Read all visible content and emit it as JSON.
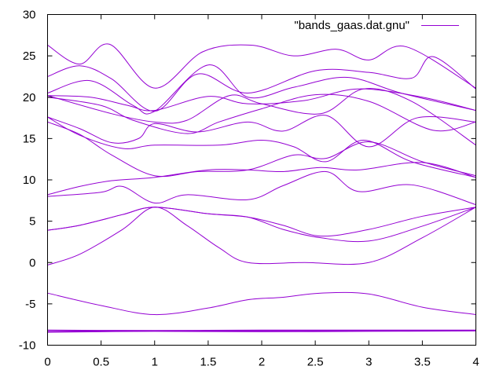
{
  "chart_data": {
    "type": "line",
    "title": "",
    "xlabel": "",
    "ylabel": "",
    "xlim": [
      0,
      4
    ],
    "ylim": [
      -10,
      30
    ],
    "xticks": [
      0,
      0.5,
      1,
      1.5,
      2,
      2.5,
      3,
      3.5,
      4
    ],
    "yticks": [
      -10,
      -5,
      0,
      5,
      10,
      15,
      20,
      25,
      30
    ],
    "xtick_labels": [
      "0",
      "0.5",
      "1",
      "1.5",
      "2",
      "2.5",
      "3",
      "3.5",
      "4"
    ],
    "ytick_labels": [
      "-10",
      "-5",
      "0",
      "5",
      "10",
      "15",
      "20",
      "25",
      "30"
    ],
    "grid": false,
    "legend_position": "top-right",
    "color": "#9400d3",
    "series": [
      {
        "name": "\"bands_gaas.dat.gnu\"",
        "bands": [
          [
            [
              0,
              -8.2
            ],
            [
              1,
              -8.25
            ],
            [
              2,
              -8.2
            ],
            [
              3,
              -8.2
            ],
            [
              4,
              -8.2
            ]
          ],
          [
            [
              0,
              -8.4
            ],
            [
              1,
              -8.3
            ],
            [
              2,
              -8.35
            ],
            [
              3,
              -8.3
            ],
            [
              4,
              -8.25
            ]
          ],
          [
            [
              0,
              -3.7
            ],
            [
              0.5,
              -5.2
            ],
            [
              1,
              -6.3
            ],
            [
              1.5,
              -5.5
            ],
            [
              1.87,
              -4.5
            ],
            [
              2.2,
              -4.2
            ],
            [
              2.55,
              -3.7
            ],
            [
              3,
              -3.8
            ],
            [
              3.5,
              -5.4
            ],
            [
              4,
              -6.3
            ]
          ],
          [
            [
              0,
              -0.3
            ],
            [
              0.3,
              1
            ],
            [
              0.7,
              4
            ],
            [
              1,
              6.7
            ],
            [
              1.3,
              4.5
            ],
            [
              1.6,
              1.8
            ],
            [
              1.87,
              0
            ],
            [
              2.4,
              0
            ],
            [
              3,
              0
            ],
            [
              3.5,
              3
            ],
            [
              4,
              6.7
            ]
          ],
          [
            [
              0,
              3.9
            ],
            [
              0.3,
              4.5
            ],
            [
              0.7,
              5.8
            ],
            [
              1,
              6.7
            ],
            [
              1.5,
              5.9
            ],
            [
              1.87,
              5.5
            ],
            [
              2.2,
              4
            ],
            [
              2.55,
              3
            ],
            [
              3,
              2.6
            ],
            [
              3.5,
              4.4
            ],
            [
              4,
              6.7
            ]
          ],
          [
            [
              0,
              3.9
            ],
            [
              0.3,
              4.5
            ],
            [
              0.7,
              5.8
            ],
            [
              1,
              6.7
            ],
            [
              1.5,
              5.9
            ],
            [
              1.87,
              5.5
            ],
            [
              2.2,
              4.5
            ],
            [
              2.55,
              3.2
            ],
            [
              3,
              4
            ],
            [
              3.5,
              5.6
            ],
            [
              4,
              6.7
            ]
          ],
          [
            [
              0,
              8
            ],
            [
              0.5,
              8.5
            ],
            [
              0.7,
              9.2
            ],
            [
              1,
              7.2
            ],
            [
              1.3,
              8.2
            ],
            [
              1.87,
              7.6
            ],
            [
              2.2,
              9.3
            ],
            [
              2.6,
              11
            ],
            [
              2.9,
              8.6
            ],
            [
              3.4,
              9.4
            ],
            [
              4,
              7
            ]
          ],
          [
            [
              0,
              8.2
            ],
            [
              0.3,
              9.2
            ],
            [
              0.6,
              9.9
            ],
            [
              1,
              10.3
            ],
            [
              1.5,
              11.2
            ],
            [
              1.87,
              11.2
            ],
            [
              2.2,
              11
            ],
            [
              2.55,
              11.5
            ],
            [
              2.9,
              11.2
            ],
            [
              3.5,
              12.1
            ],
            [
              4,
              10.3
            ]
          ],
          [
            [
              0,
              17
            ],
            [
              0.3,
              15.5
            ],
            [
              0.6,
              13
            ],
            [
              1,
              10.5
            ],
            [
              1.4,
              11
            ],
            [
              1.87,
              11.2
            ],
            [
              2.3,
              13
            ],
            [
              2.6,
              12.6
            ],
            [
              3,
              14.6
            ],
            [
              3.5,
              12.2
            ],
            [
              4,
              10.5
            ]
          ],
          [
            [
              0,
              17.6
            ],
            [
              0.3,
              15.4
            ],
            [
              0.7,
              13.8
            ],
            [
              1,
              14.2
            ],
            [
              1.6,
              14.2
            ],
            [
              2,
              14.8
            ],
            [
              2.3,
              14
            ],
            [
              2.6,
              12.2
            ],
            [
              2.95,
              14.8
            ],
            [
              3.4,
              12.2
            ],
            [
              4,
              10.3
            ]
          ],
          [
            [
              0,
              17.6
            ],
            [
              0.3,
              16.2
            ],
            [
              0.6,
              14.5
            ],
            [
              0.85,
              15
            ],
            [
              1,
              16.8
            ],
            [
              1.4,
              15.8
            ],
            [
              1.87,
              17
            ],
            [
              2.2,
              15.9
            ],
            [
              2.6,
              17.8
            ],
            [
              3,
              14
            ],
            [
              3.45,
              17.5
            ],
            [
              4,
              17
            ]
          ],
          [
            [
              0,
              20
            ],
            [
              0.5,
              19
            ],
            [
              0.8,
              17.2
            ],
            [
              1.3,
              15.6
            ],
            [
              1.6,
              17
            ],
            [
              2,
              18.6
            ],
            [
              2.5,
              20.3
            ],
            [
              3,
              19.5
            ],
            [
              3.6,
              16
            ],
            [
              4,
              17
            ]
          ],
          [
            [
              0,
              20.2
            ],
            [
              0.6,
              18
            ],
            [
              1,
              17
            ],
            [
              1.3,
              17.2
            ],
            [
              1.7,
              20.2
            ],
            [
              2,
              19.2
            ],
            [
              2.55,
              18
            ],
            [
              2.95,
              21
            ],
            [
              3.4,
              19.5
            ],
            [
              4,
              14.2
            ]
          ],
          [
            [
              0,
              20.2
            ],
            [
              0.4,
              20
            ],
            [
              0.75,
              19
            ],
            [
              1,
              18.4
            ],
            [
              1.5,
              20.1
            ],
            [
              1.87,
              19.2
            ],
            [
              2.4,
              19.6
            ],
            [
              2.9,
              21
            ],
            [
              3.5,
              20
            ],
            [
              4,
              18.4
            ]
          ],
          [
            [
              0,
              20.5
            ],
            [
              0.4,
              22
            ],
            [
              0.8,
              19
            ],
            [
              1,
              18.3
            ],
            [
              1.5,
              23.9
            ],
            [
              1.87,
              20
            ],
            [
              2.3,
              21.2
            ],
            [
              2.8,
              22.4
            ],
            [
              3.3,
              20.5
            ],
            [
              4,
              18.4
            ]
          ],
          [
            [
              0,
              22.5
            ],
            [
              0.3,
              23.8
            ],
            [
              0.6,
              22.2
            ],
            [
              1,
              18.3
            ],
            [
              1.4,
              22.8
            ],
            [
              1.87,
              20.5
            ],
            [
              2.5,
              23.2
            ],
            [
              3,
              23
            ],
            [
              3.4,
              22.3
            ],
            [
              3.6,
              24.9
            ],
            [
              4,
              21
            ]
          ],
          [
            [
              0,
              26.3
            ],
            [
              0.3,
              24
            ],
            [
              0.58,
              26.4
            ],
            [
              1,
              21.1
            ],
            [
              1.45,
              25.5
            ],
            [
              1.9,
              26.3
            ],
            [
              2.3,
              25
            ],
            [
              2.7,
              25.8
            ],
            [
              3,
              24.5
            ],
            [
              3.35,
              26.1
            ],
            [
              4,
              21.1
            ]
          ]
        ]
      }
    ]
  }
}
